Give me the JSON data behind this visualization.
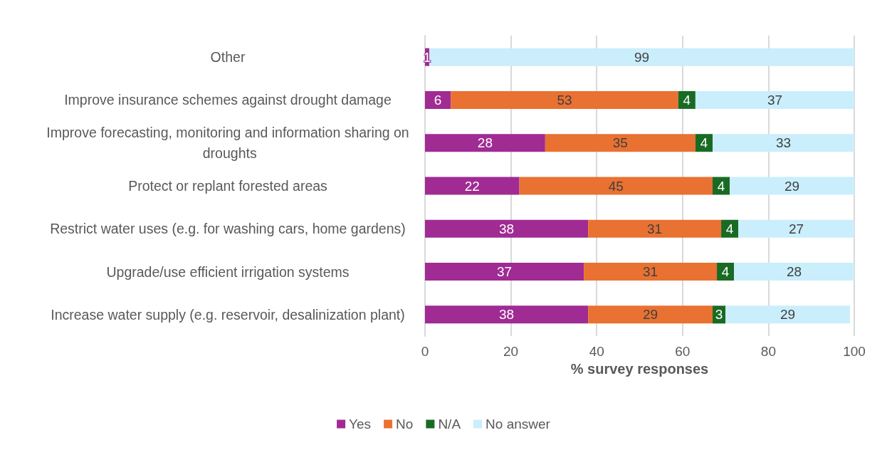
{
  "chart_data": {
    "type": "bar",
    "orientation": "horizontal",
    "stacked": true,
    "xlabel": "% survey responses",
    "categories": [
      "Other",
      "Improve insurance schemes against drought damage",
      "Improve forecasting, monitoring and information sharing on droughts",
      "Protect or replant forested areas",
      "Restrict water uses (e.g. for washing cars, home gardens)",
      "Upgrade/use efficient irrigation systems",
      "Increase water supply (e.g. reservoir, desalinization plant)"
    ],
    "series": [
      {
        "name": "Yes",
        "color": "#a02b93",
        "values": [
          1,
          6,
          28,
          22,
          38,
          37,
          38
        ]
      },
      {
        "name": "No",
        "color": "#e97132",
        "values": [
          null,
          53,
          35,
          45,
          31,
          31,
          29
        ]
      },
      {
        "name": "N/A",
        "color": "#196b24",
        "values": [
          null,
          4,
          4,
          4,
          4,
          4,
          3
        ]
      },
      {
        "name": "No answer",
        "color": "#caeefb",
        "values": [
          99,
          37,
          33,
          29,
          27,
          28,
          29
        ]
      }
    ],
    "xlim": [
      0,
      100
    ],
    "xticks": [
      0,
      20,
      40,
      60,
      80,
      100
    ],
    "grid": "x",
    "legend": "bottom",
    "data_labels": true
  }
}
